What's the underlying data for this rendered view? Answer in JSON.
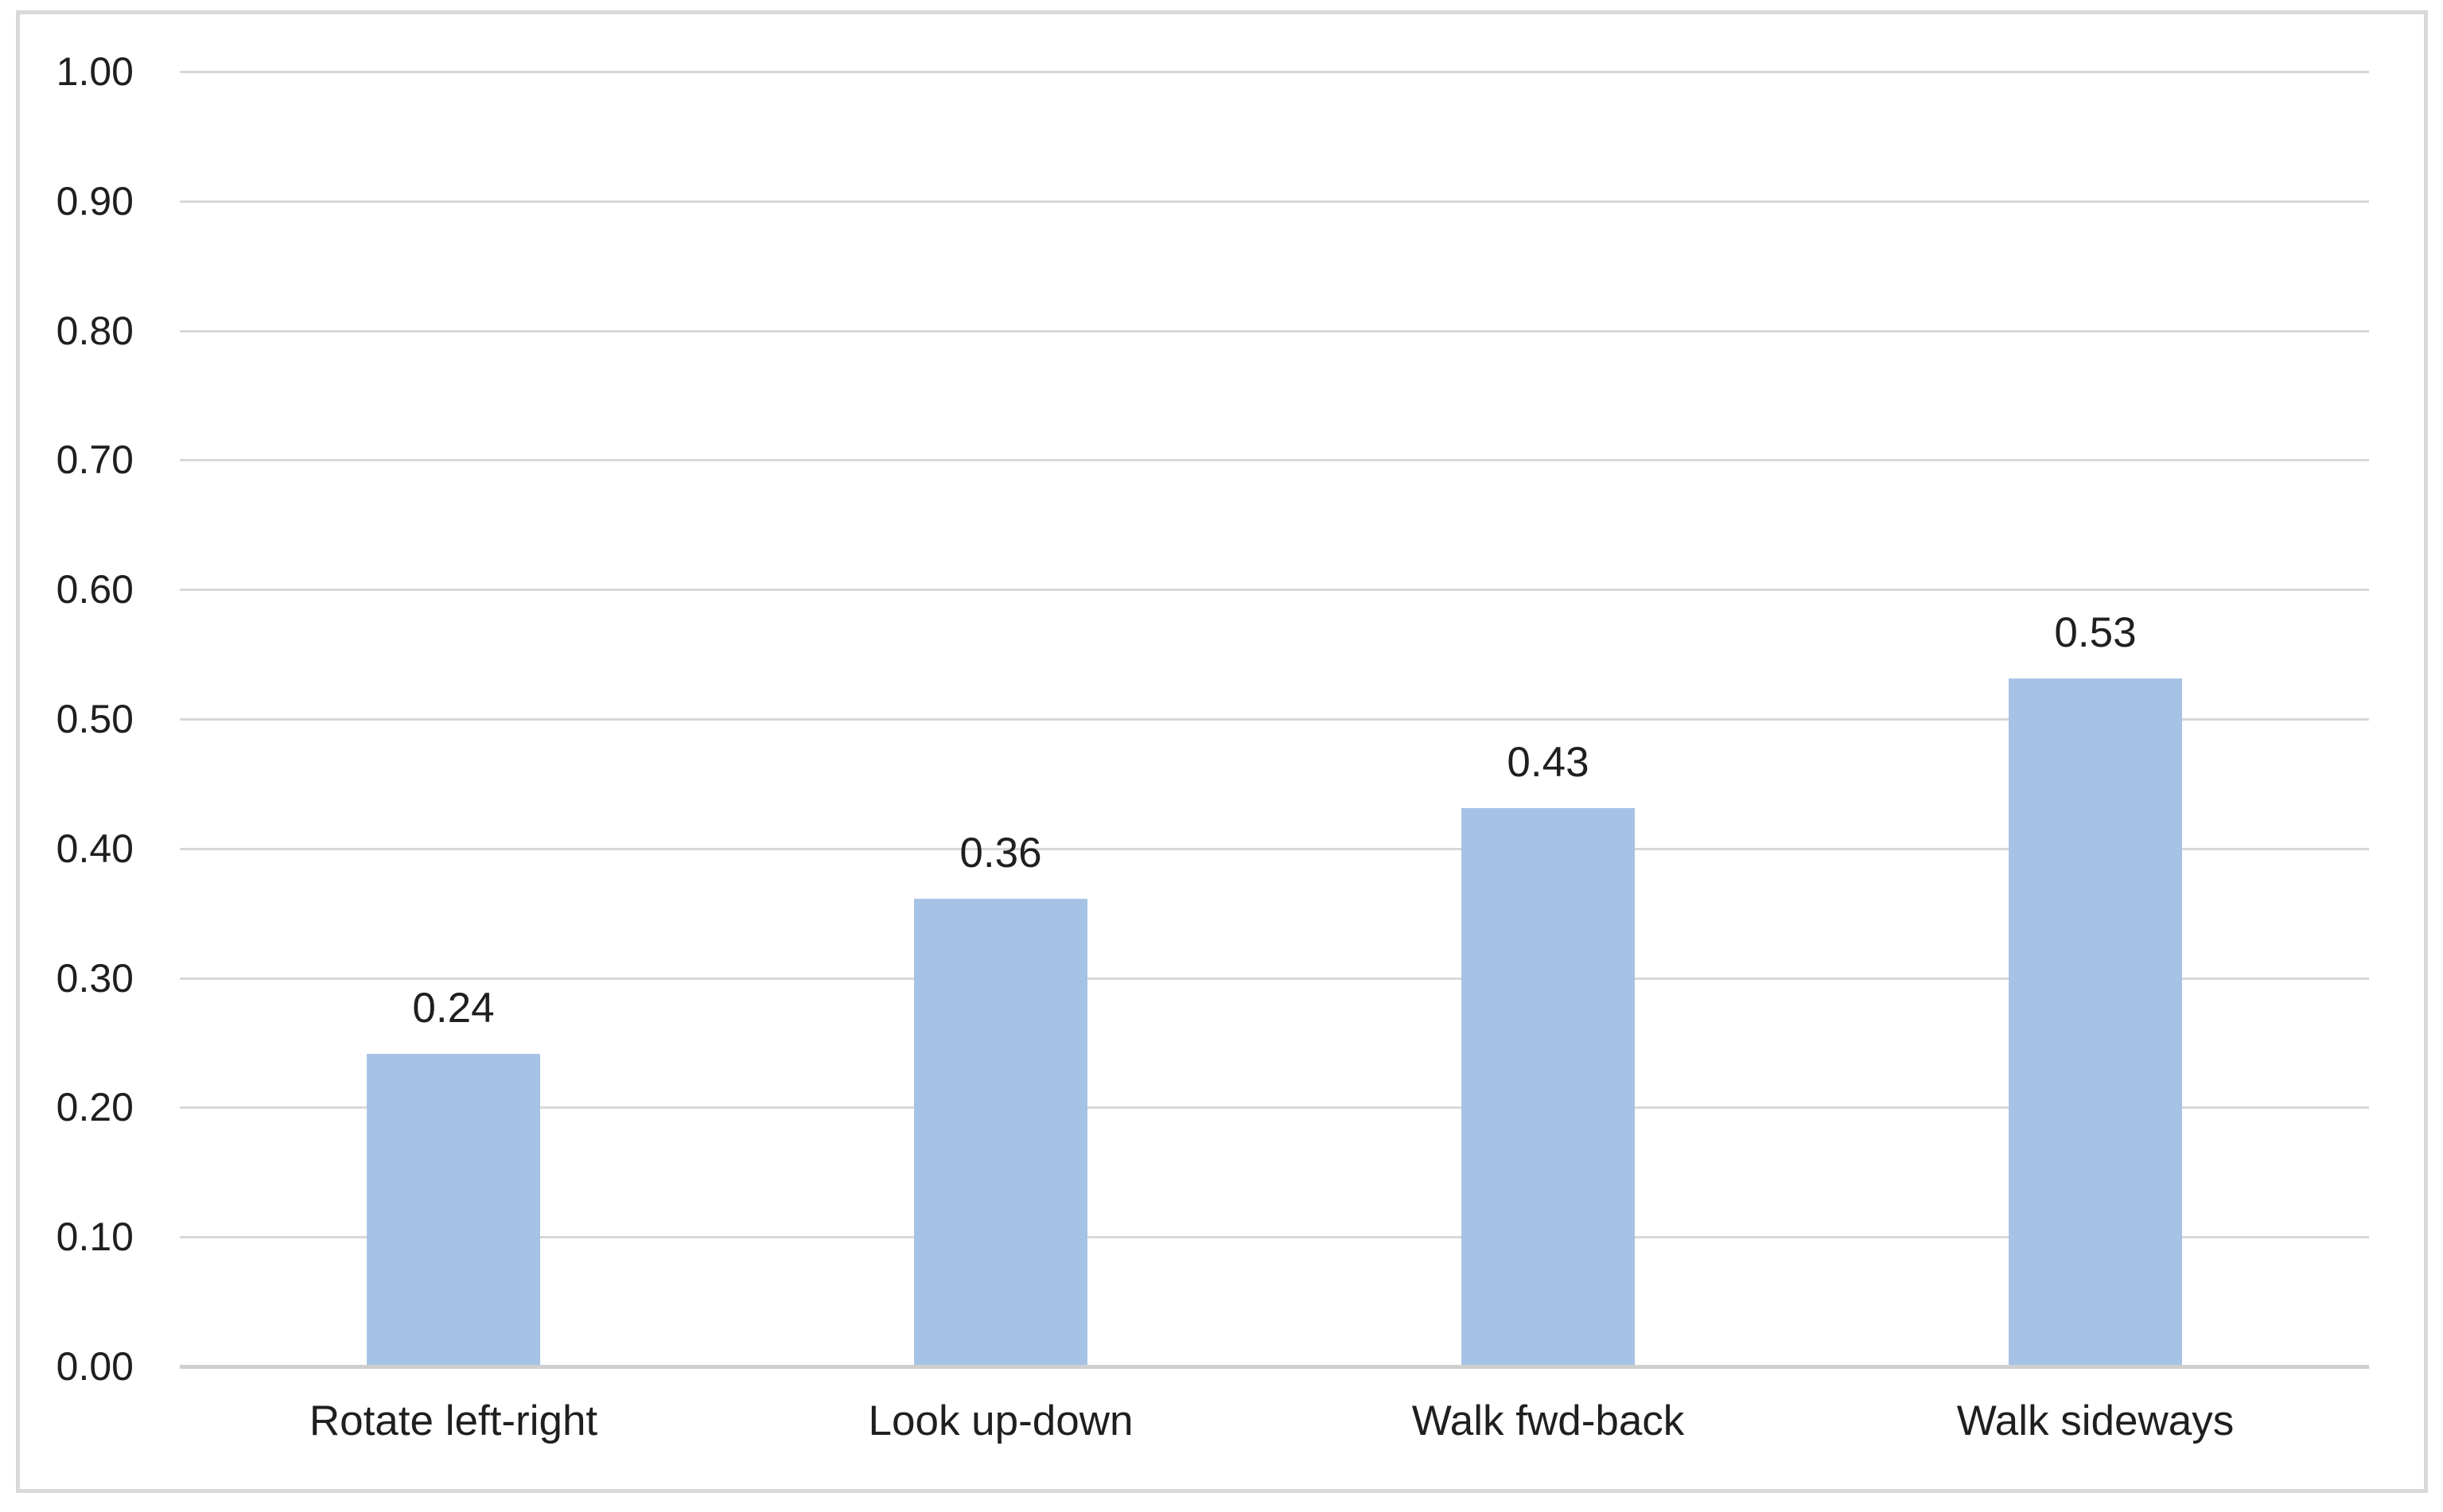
{
  "chart_data": {
    "type": "bar",
    "title": "",
    "xlabel": "",
    "ylabel": "",
    "categories": [
      "Rotate left-right",
      "Look up-down",
      "Walk fwd-back",
      "Walk sideways"
    ],
    "values": [
      0.24,
      0.36,
      0.43,
      0.53
    ],
    "data_labels": [
      "0.24",
      "0.36",
      "0.43",
      "0.53"
    ],
    "ylim": [
      0.0,
      1.0
    ],
    "ytick_step": 0.1,
    "ytick_labels": [
      "1.00",
      "0.90",
      "0.80",
      "0.70",
      "0.60",
      "0.50",
      "0.40",
      "0.30",
      "0.20",
      "0.10",
      "0.00"
    ],
    "grid": true,
    "legend_position": "none",
    "colors": {
      "bar_fill": "#A6C3E5",
      "gridline": "#D8D8D8",
      "axis_line": "#CFCFCF",
      "frame_border": "#D9D9D9",
      "label_text": "#1F1F1F",
      "background": "#FFFFFF"
    }
  }
}
